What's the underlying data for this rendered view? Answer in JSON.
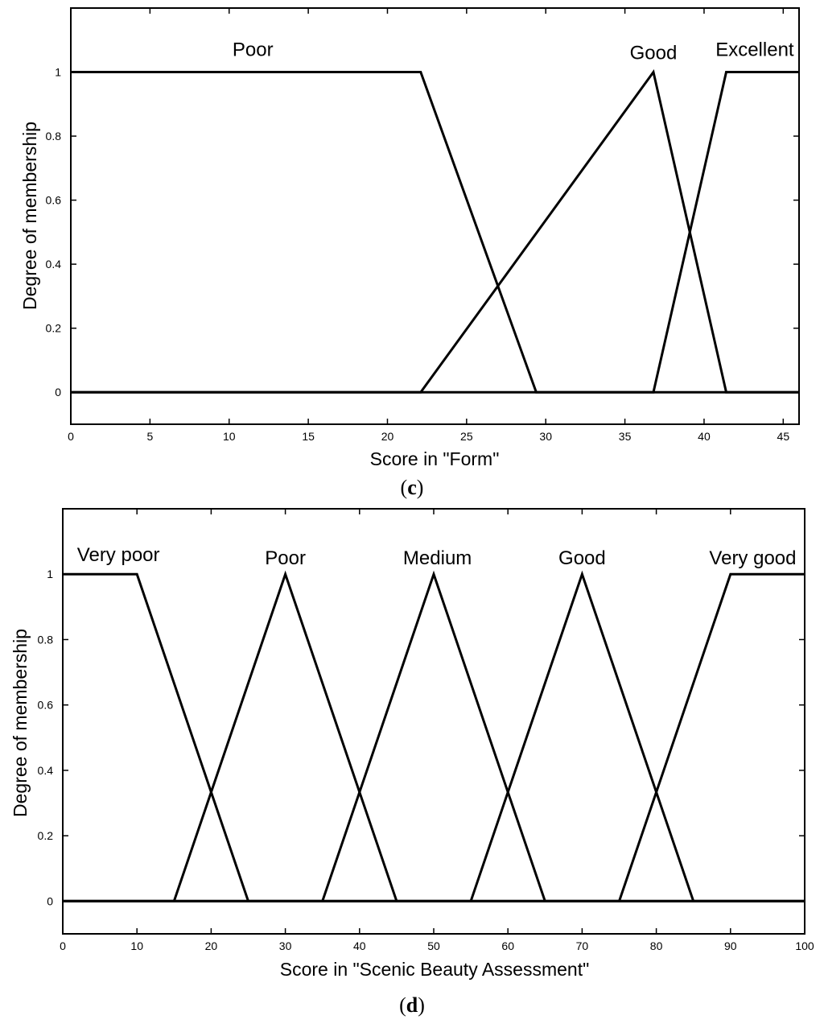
{
  "chart_data": [
    {
      "type": "line",
      "xlabel": "Score in \"Form\"",
      "ylabel": "Degree of membership",
      "xlim": [
        0,
        46
      ],
      "ylim": [
        -0.1,
        1.2
      ],
      "xticks": [
        0,
        5,
        10,
        15,
        20,
        25,
        30,
        35,
        40,
        45
      ],
      "xtick_labels": [
        "0",
        "5",
        "10",
        "15",
        "20",
        "25",
        "30",
        "35",
        "40",
        "45"
      ],
      "yticks": [
        0,
        0.2,
        0.4,
        0.6,
        0.8,
        1
      ],
      "ytick_labels": [
        "0",
        "0.2",
        "0.4",
        "0.6",
        "0.8",
        "1"
      ],
      "grid": false,
      "series": [
        {
          "name": "Poor",
          "x": [
            0,
            22.1,
            29.4,
            46
          ],
          "y": [
            1,
            1,
            0,
            0
          ]
        },
        {
          "name": "Good",
          "x": [
            0,
            22.1,
            36.8,
            41.4,
            46
          ],
          "y": [
            0,
            0,
            1,
            0,
            0
          ]
        },
        {
          "name": "Excellent",
          "x": [
            0,
            36.8,
            41.4,
            46
          ],
          "y": [
            0,
            0,
            1,
            1
          ]
        }
      ],
      "label_positions": [
        {
          "x": 11.5,
          "y": 1.05
        },
        {
          "x": 36.8,
          "y": 1.04
        },
        {
          "x": 43.2,
          "y": 1.05
        }
      ]
    },
    {
      "type": "line",
      "xlabel": "Score in \"Scenic Beauty Assessment\"",
      "ylabel": "Degree of membership",
      "xlim": [
        0,
        100
      ],
      "ylim": [
        -0.1,
        1.2
      ],
      "xticks": [
        0,
        10,
        20,
        30,
        40,
        50,
        60,
        70,
        80,
        90,
        100
      ],
      "xtick_labels": [
        "0",
        "10",
        "20",
        "30",
        "40",
        "50",
        "60",
        "70",
        "80",
        "90",
        "100"
      ],
      "yticks": [
        0,
        0.2,
        0.4,
        0.6,
        0.8,
        1
      ],
      "ytick_labels": [
        "0",
        "0.2",
        "0.4",
        "0.6",
        "0.8",
        "1"
      ],
      "grid": false,
      "series": [
        {
          "name": "Very poor",
          "x": [
            0,
            10,
            25,
            100
          ],
          "y": [
            1,
            1,
            0,
            0
          ]
        },
        {
          "name": "Poor",
          "x": [
            0,
            15,
            30,
            45,
            100
          ],
          "y": [
            0,
            0,
            1,
            0,
            0
          ]
        },
        {
          "name": "Medium",
          "x": [
            0,
            35,
            50,
            65,
            100
          ],
          "y": [
            0,
            0,
            1,
            0,
            0
          ]
        },
        {
          "name": "Good",
          "x": [
            0,
            55,
            70,
            85,
            100
          ],
          "y": [
            0,
            0,
            1,
            0,
            0
          ]
        },
        {
          "name": "Very good",
          "x": [
            0,
            75,
            90,
            100
          ],
          "y": [
            0,
            0,
            1,
            1
          ]
        }
      ],
      "label_positions": [
        {
          "x": 7.5,
          "y": 1.04
        },
        {
          "x": 30,
          "y": 1.03
        },
        {
          "x": 50.5,
          "y": 1.03
        },
        {
          "x": 70,
          "y": 1.03
        },
        {
          "x": 93,
          "y": 1.03
        }
      ]
    }
  ],
  "panel_labels": {
    "c_open": "(",
    "c_letter": "c",
    "c_close": ")",
    "d_open": "(",
    "d_letter": "d",
    "d_close": ")"
  }
}
